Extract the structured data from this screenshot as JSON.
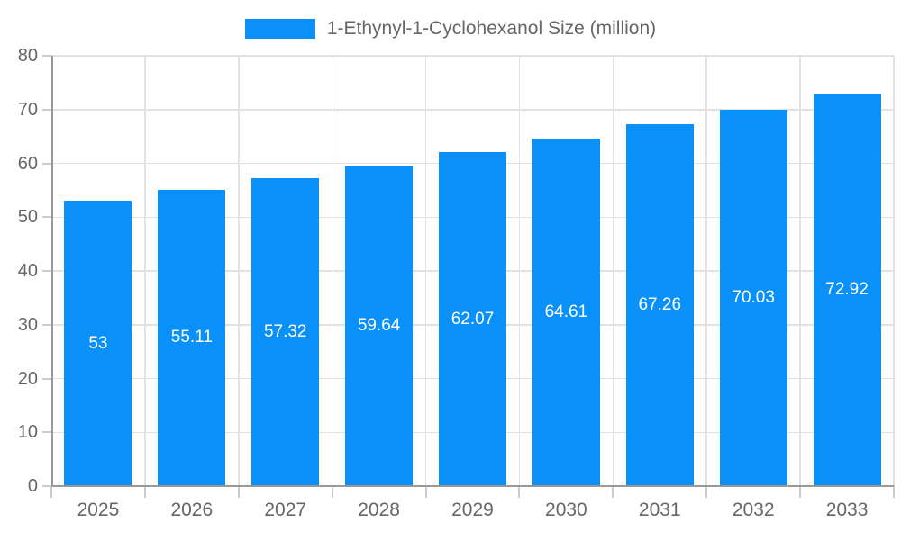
{
  "chart_data": {
    "type": "bar",
    "title": "1-Ethynyl-1-Cyclohexanol Size (million)",
    "legend": [
      "1-Ethynyl-1-Cyclohexanol Size (million)"
    ],
    "legend_position": "top-center",
    "categories": [
      "2025",
      "2026",
      "2027",
      "2028",
      "2029",
      "2030",
      "2031",
      "2032",
      "2033"
    ],
    "values": [
      53,
      55.11,
      57.32,
      59.64,
      62.07,
      64.61,
      67.26,
      70.03,
      72.92
    ],
    "value_labels": [
      "53",
      "55.11",
      "57.32",
      "59.64",
      "62.07",
      "64.61",
      "67.26",
      "70.03",
      "72.92"
    ],
    "xlabel": "",
    "ylabel": "",
    "ylim": [
      0,
      80
    ],
    "yticks": [
      0,
      10,
      20,
      30,
      40,
      50,
      60,
      70,
      80
    ],
    "grid": true,
    "value_labels_inside_bars": true,
    "colors": {
      "bar": "#0a90f9",
      "axis_line": "#999999",
      "gridline": "#e2e2e2",
      "tick": "#cccccc",
      "axis_text": "#666666",
      "bar_label_text": "#ffffff",
      "background": "#ffffff"
    }
  }
}
